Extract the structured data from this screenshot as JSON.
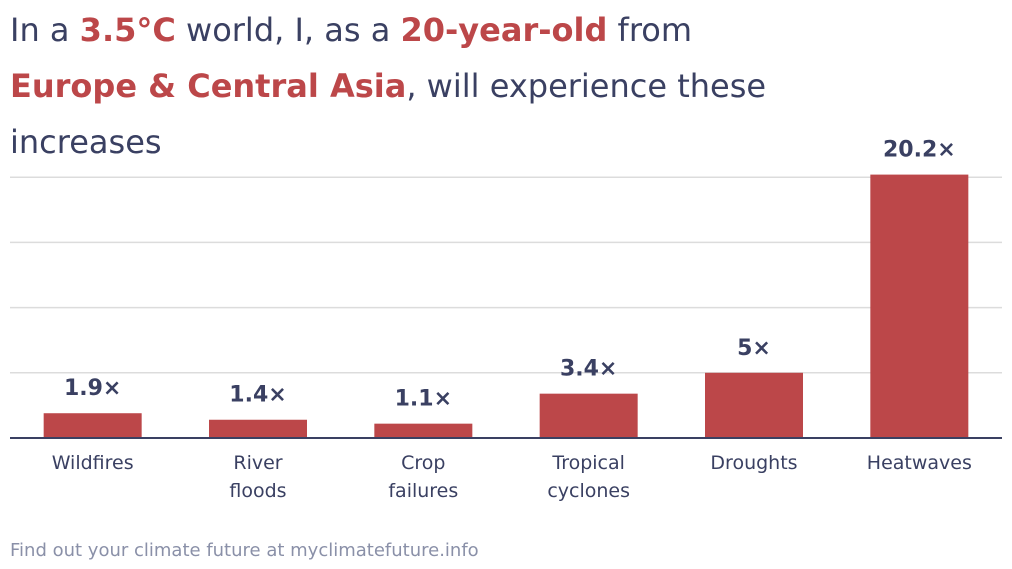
{
  "title": {
    "part1": "In a ",
    "temp": "3.5°C",
    "part2": " world, I, as a ",
    "age": "20-year-old",
    "part3": " from ",
    "region": "Europe & Central Asia",
    "part4": ", will experience these increases"
  },
  "footer": "Find out your climate future at myclimatefuture.info",
  "colors": {
    "bar": "#bc4749",
    "text": "#3a4062",
    "grid": "#dcdcdc",
    "footer": "#8a90a8"
  },
  "chart_data": {
    "type": "bar",
    "categories": [
      [
        "Wildfires"
      ],
      [
        "River",
        "floods"
      ],
      [
        "Crop",
        "failures"
      ],
      [
        "Tropical",
        "cyclones"
      ],
      [
        "Droughts"
      ],
      [
        "Heatwaves"
      ]
    ],
    "values": [
      1.9,
      1.4,
      1.1,
      3.4,
      5,
      20.2
    ],
    "value_labels": [
      "1.9×",
      "1.4×",
      "1.1×",
      "3.4×",
      "5×",
      "20.2×"
    ],
    "ylim": [
      0,
      25
    ],
    "grid": true
  }
}
